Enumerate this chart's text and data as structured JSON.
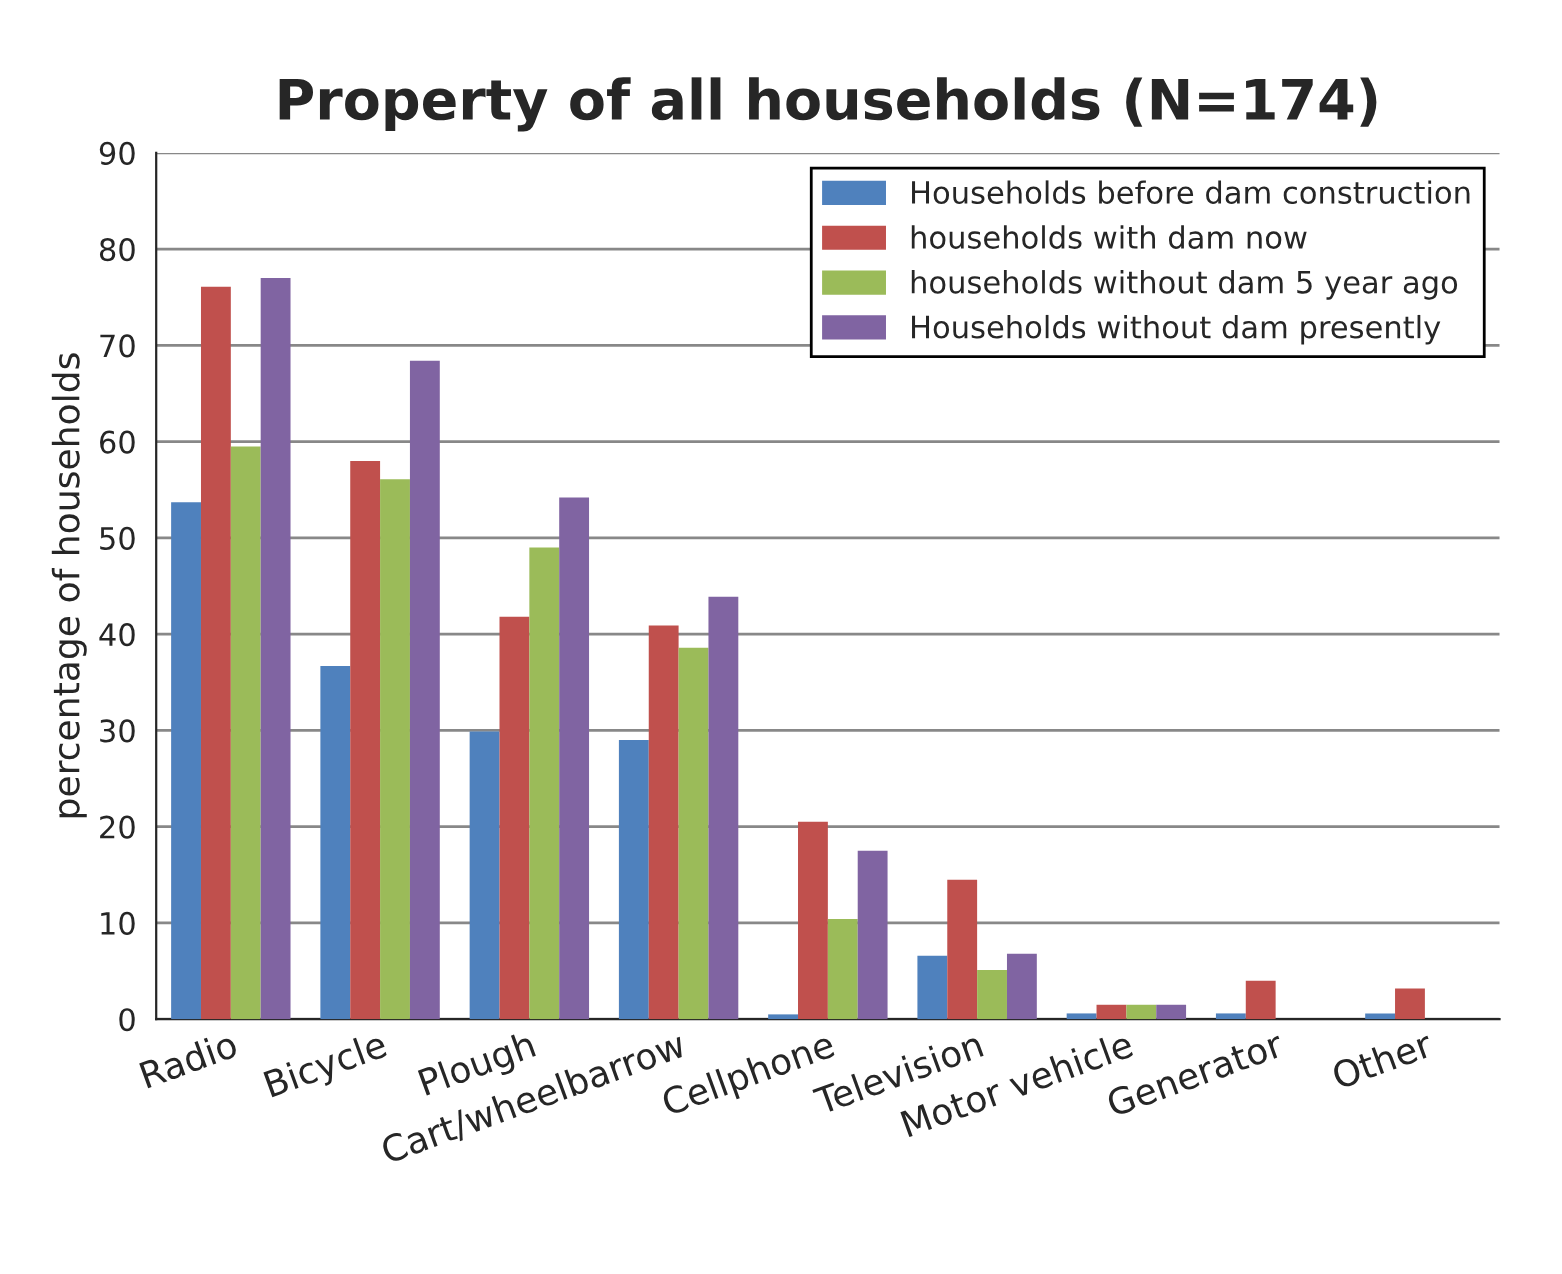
{
  "chart_data": {
    "type": "bar",
    "title": "Property of all households (N=174)",
    "ylabel": "percentage of households",
    "categories": [
      "Radio",
      "Bicycle",
      "Plough",
      "Cart/wheelbarrow",
      "Cellphone",
      "Television",
      "Motor vehicle",
      "Generator",
      "Other"
    ],
    "series": [
      {
        "name": "Households before dam construction",
        "color": "#4f81bd",
        "values": [
          53.7,
          36.7,
          29.9,
          29.0,
          0.5,
          6.6,
          0.6,
          0.6,
          0.6
        ]
      },
      {
        "name": "households with dam now",
        "color": "#c0504d",
        "values": [
          76.1,
          58.0,
          41.8,
          40.9,
          20.5,
          14.5,
          1.5,
          4.0,
          3.2
        ]
      },
      {
        "name": "households without dam 5 year ago",
        "color": "#9bbb59",
        "values": [
          59.5,
          56.1,
          49.0,
          38.6,
          10.4,
          5.1,
          1.5,
          null,
          null
        ]
      },
      {
        "name": "Households without dam presently",
        "color": "#8064a2",
        "values": [
          77.0,
          68.4,
          54.2,
          43.9,
          17.5,
          6.8,
          1.5,
          null,
          null
        ]
      }
    ],
    "ylim": [
      0,
      90
    ],
    "yticks": [
      0,
      10,
      20,
      30,
      40,
      50,
      60,
      70,
      80,
      90
    ],
    "grid": "y",
    "legend": "top right"
  }
}
